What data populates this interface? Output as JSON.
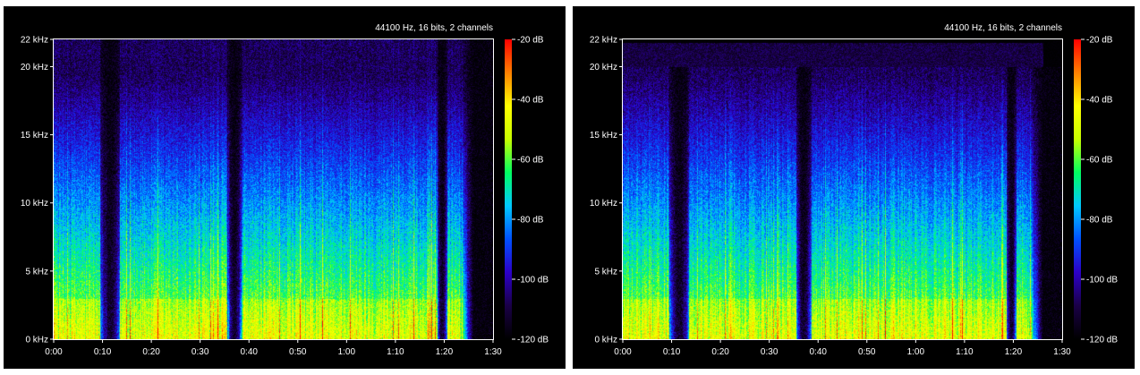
{
  "chart_data": [
    {
      "type": "heatmap",
      "title": "44100 Hz, 16 bits, 2 channels",
      "x_ticks": [
        "0:00",
        "0:10",
        "0:20",
        "0:30",
        "0:40",
        "0:50",
        "1:00",
        "1:10",
        "1:20",
        "1:30"
      ],
      "x_tick_seconds": [
        0,
        10,
        20,
        30,
        40,
        50,
        60,
        70,
        80,
        90
      ],
      "xlim_seconds": [
        0,
        90
      ],
      "y_ticks": [
        "0 kHz",
        "5 kHz",
        "10 kHz",
        "15 kHz",
        "20 kHz",
        "22 kHz"
      ],
      "y_tick_khz": [
        0,
        5,
        10,
        15,
        20,
        22
      ],
      "ylim_khz": [
        0,
        22
      ],
      "colorbar_ticks": [
        "-20 dB",
        "-40 dB",
        "-60 dB",
        "-80 dB",
        "-100 dB",
        "-120 dB"
      ],
      "colorbar_db": [
        -20,
        -40,
        -60,
        -80,
        -100,
        -120
      ],
      "colorbar_range_db": [
        -120,
        -20
      ],
      "colormap": [
        "#000000",
        "#1a0046",
        "#2c00c8",
        "#0050ff",
        "#00c8ff",
        "#00ff60",
        "#c8ff00",
        "#ffff00",
        "#ff8000",
        "#ff0000"
      ],
      "frequency_cutoff_khz": 22,
      "silent_gaps_seconds": [
        [
          9.5,
          13.5
        ],
        [
          35.5,
          38.5
        ],
        [
          78.5,
          80.5
        ]
      ],
      "audio_end_seconds": 86
    },
    {
      "type": "heatmap",
      "title": "44100 Hz, 16 bits, 2 channels",
      "x_ticks": [
        "0:00",
        "0:10",
        "0:20",
        "0:30",
        "0:40",
        "0:50",
        "1:00",
        "1:10",
        "1:20",
        "1:30"
      ],
      "x_tick_seconds": [
        0,
        10,
        20,
        30,
        40,
        50,
        60,
        70,
        80,
        90
      ],
      "xlim_seconds": [
        0,
        90
      ],
      "y_ticks": [
        "0 kHz",
        "5 kHz",
        "10 kHz",
        "15 kHz",
        "20 kHz",
        "22 kHz"
      ],
      "y_tick_khz": [
        0,
        5,
        10,
        15,
        20,
        22
      ],
      "ylim_khz": [
        0,
        22
      ],
      "colorbar_ticks": [
        "-20 dB",
        "-40 dB",
        "-60 dB",
        "-80 dB",
        "-100 dB",
        "-120 dB"
      ],
      "colorbar_db": [
        -20,
        -40,
        -60,
        -80,
        -100,
        -120
      ],
      "colorbar_range_db": [
        -120,
        -20
      ],
      "colormap": [
        "#000000",
        "#1a0046",
        "#2c00c8",
        "#0050ff",
        "#00c8ff",
        "#00ff60",
        "#c8ff00",
        "#ffff00",
        "#ff8000",
        "#ff0000"
      ],
      "frequency_cutoff_khz": 20,
      "silent_gaps_seconds": [
        [
          9.5,
          13.5
        ],
        [
          35.5,
          38.5
        ],
        [
          78.5,
          80.5
        ]
      ],
      "audio_end_seconds": 86
    }
  ]
}
